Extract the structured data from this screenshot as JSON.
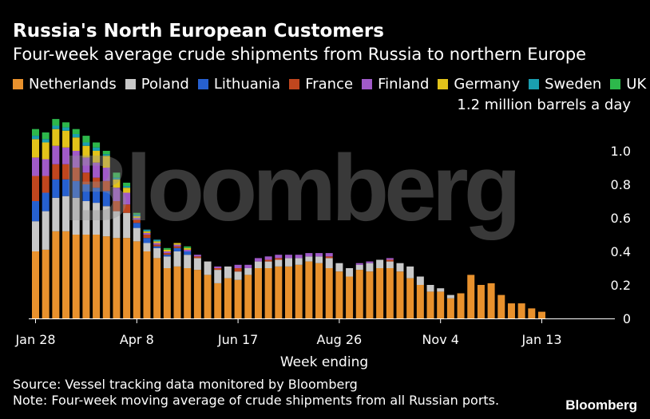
{
  "chart_data": {
    "type": "bar",
    "stacked": true,
    "title": "Russia's North European Customers",
    "subtitle": "Four-week average crude shipments from Russia to northern Europe",
    "unit_label": "1.2 million barrels a day",
    "xlabel": "Week ending",
    "ylabel": "",
    "ylim": [
      0,
      1.2
    ],
    "yticks": [
      "1.0",
      "0.8",
      "0.6",
      "0.4",
      "0.2",
      "0"
    ],
    "ytick_values": [
      1.0,
      0.8,
      0.6,
      0.4,
      0.2,
      0
    ],
    "xticks": [
      "Jan 28",
      "Apr 8",
      "Jun 17",
      "Aug 26",
      "Nov 4",
      "Jan 13"
    ],
    "xtick_index": [
      0,
      10,
      20,
      30,
      40,
      50
    ],
    "n_slots": 58,
    "legend_position": "top",
    "grid": false,
    "series": [
      {
        "name": "Netherlands",
        "color": "#E8912D",
        "values": [
          0.4,
          0.41,
          0.52,
          0.52,
          0.5,
          0.5,
          0.5,
          0.49,
          0.48,
          0.48,
          0.46,
          0.4,
          0.36,
          0.3,
          0.31,
          0.3,
          0.29,
          0.26,
          0.21,
          0.24,
          0.23,
          0.26,
          0.3,
          0.3,
          0.31,
          0.31,
          0.32,
          0.34,
          0.33,
          0.3,
          0.28,
          0.25,
          0.29,
          0.28,
          0.3,
          0.3,
          0.28,
          0.24,
          0.2,
          0.16,
          0.16,
          0.12,
          0.15,
          0.26,
          0.2,
          0.21,
          0.14,
          0.09,
          0.09,
          0.06,
          0.04,
          0,
          0,
          0,
          0,
          0,
          0,
          0
        ]
      },
      {
        "name": "Poland",
        "color": "#C8C8C8",
        "values": [
          0.18,
          0.23,
          0.2,
          0.21,
          0.22,
          0.2,
          0.19,
          0.18,
          0.16,
          0.15,
          0.08,
          0.05,
          0.06,
          0.07,
          0.09,
          0.08,
          0.07,
          0.08,
          0.08,
          0.07,
          0.05,
          0.04,
          0.04,
          0.04,
          0.04,
          0.05,
          0.04,
          0.03,
          0.04,
          0.06,
          0.05,
          0.05,
          0.03,
          0.05,
          0.05,
          0.04,
          0.05,
          0.07,
          0.05,
          0.04,
          0.02,
          0.02,
          0,
          0,
          0,
          0,
          0,
          0,
          0,
          0,
          0,
          0,
          0,
          0,
          0,
          0,
          0,
          0
        ]
      },
      {
        "name": "Lithuania",
        "color": "#2660D0",
        "values": [
          0.12,
          0.11,
          0.11,
          0.1,
          0.1,
          0.1,
          0.09,
          0.09,
          0,
          0,
          0.03,
          0.03,
          0.01,
          0.01,
          0.02,
          0.02,
          0,
          0,
          0,
          0,
          0,
          0,
          0,
          0,
          0,
          0,
          0,
          0,
          0,
          0,
          0,
          0,
          0,
          0,
          0,
          0,
          0,
          0,
          0,
          0,
          0,
          0,
          0,
          0,
          0,
          0,
          0,
          0,
          0,
          0,
          0,
          0,
          0,
          0,
          0,
          0,
          0,
          0
        ]
      },
      {
        "name": "France",
        "color": "#C0461E",
        "values": [
          0.15,
          0.1,
          0.09,
          0.09,
          0.08,
          0.07,
          0.06,
          0.06,
          0.06,
          0.05,
          0.02,
          0.02,
          0.01,
          0.01,
          0.01,
          0,
          0.01,
          0,
          0.01,
          0,
          0.02,
          0,
          0,
          0.01,
          0.01,
          0,
          0,
          0,
          0,
          0.01,
          0,
          0,
          0,
          0,
          0,
          0.01,
          0,
          0,
          0,
          0,
          0,
          0,
          0,
          0,
          0,
          0,
          0,
          0,
          0,
          0,
          0,
          0,
          0,
          0,
          0,
          0,
          0,
          0
        ]
      },
      {
        "name": "Finland",
        "color": "#A05AC8",
        "values": [
          0.11,
          0.1,
          0.11,
          0.1,
          0.1,
          0.09,
          0.09,
          0.08,
          0.08,
          0.07,
          0.01,
          0.01,
          0.01,
          0.01,
          0.01,
          0.01,
          0.01,
          0,
          0.01,
          0,
          0.02,
          0.02,
          0.02,
          0.02,
          0.02,
          0.02,
          0.02,
          0.02,
          0.02,
          0.02,
          0,
          0,
          0.01,
          0.01,
          0,
          0.01,
          0,
          0,
          0,
          0,
          0,
          0,
          0,
          0,
          0,
          0,
          0,
          0,
          0,
          0,
          0,
          0,
          0,
          0,
          0,
          0,
          0,
          0
        ]
      },
      {
        "name": "Germany",
        "color": "#E2C31A",
        "values": [
          0.11,
          0.1,
          0.1,
          0.1,
          0.08,
          0.07,
          0.07,
          0.07,
          0.05,
          0.03,
          0.01,
          0.01,
          0.01,
          0.01,
          0.01,
          0.01,
          0,
          0,
          0,
          0,
          0,
          0,
          0,
          0,
          0,
          0,
          0,
          0,
          0,
          0,
          0,
          0,
          0,
          0,
          0,
          0,
          0,
          0,
          0,
          0,
          0,
          0,
          0,
          0,
          0,
          0,
          0,
          0,
          0,
          0,
          0,
          0,
          0,
          0,
          0,
          0,
          0,
          0
        ]
      },
      {
        "name": "Sweden",
        "color": "#1A9EB0",
        "values": [
          0.02,
          0.02,
          0.02,
          0.02,
          0.02,
          0.02,
          0.02,
          0.01,
          0.01,
          0.01,
          0.01,
          0.01,
          0.01,
          0,
          0,
          0,
          0,
          0,
          0,
          0,
          0,
          0,
          0,
          0,
          0,
          0,
          0,
          0,
          0,
          0,
          0,
          0,
          0,
          0,
          0,
          0,
          0,
          0,
          0,
          0,
          0,
          0,
          0,
          0,
          0,
          0,
          0,
          0,
          0,
          0,
          0,
          0,
          0,
          0,
          0,
          0,
          0,
          0
        ]
      },
      {
        "name": "UK",
        "color": "#2DB84B",
        "values": [
          0.04,
          0.04,
          0.04,
          0.03,
          0.03,
          0.04,
          0.03,
          0.02,
          0.03,
          0.02,
          0.01,
          0,
          0,
          0.01,
          0,
          0.01,
          0,
          0,
          0,
          0,
          0,
          0,
          0,
          0,
          0,
          0,
          0,
          0,
          0,
          0,
          0,
          0,
          0,
          0,
          0,
          0,
          0,
          0,
          0,
          0,
          0,
          0,
          0,
          0,
          0,
          0,
          0,
          0,
          0,
          0,
          0,
          0,
          0,
          0,
          0,
          0,
          0,
          0
        ]
      }
    ]
  },
  "footer": {
    "source": "Source: Vessel tracking data monitored by Bloomberg",
    "note": "Note: Four-week moving average of crude shipments from all Russian ports.",
    "brand": "Bloomberg"
  },
  "watermark": "Bloomberg"
}
